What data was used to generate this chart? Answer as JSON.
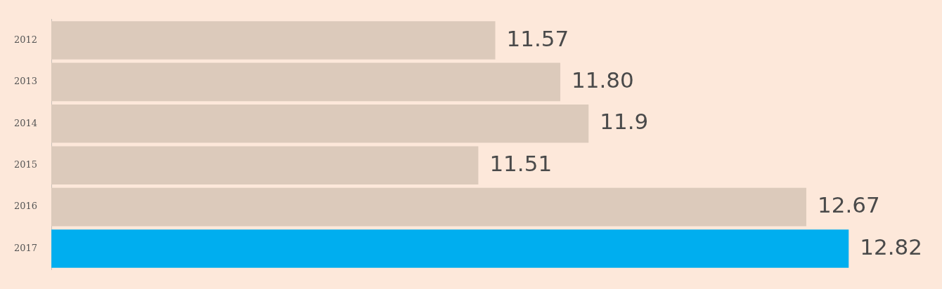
{
  "chart_data": {
    "type": "bar",
    "orientation": "horizontal",
    "categories": [
      "2012",
      "2013",
      "2014",
      "2015",
      "2016",
      "2017"
    ],
    "values": [
      11.57,
      11.8,
      11.9,
      11.51,
      12.67,
      12.82
    ],
    "value_labels": [
      "11.57",
      "11.80",
      "11.9",
      "11.51",
      "12.67",
      "12.82"
    ],
    "colors": [
      "#dccabb",
      "#dccabb",
      "#dccabb",
      "#dccabb",
      "#dccabb",
      "#00aeef"
    ],
    "xlim": [
      10,
      13.15
    ],
    "tick_labels": "y",
    "legend": false
  }
}
